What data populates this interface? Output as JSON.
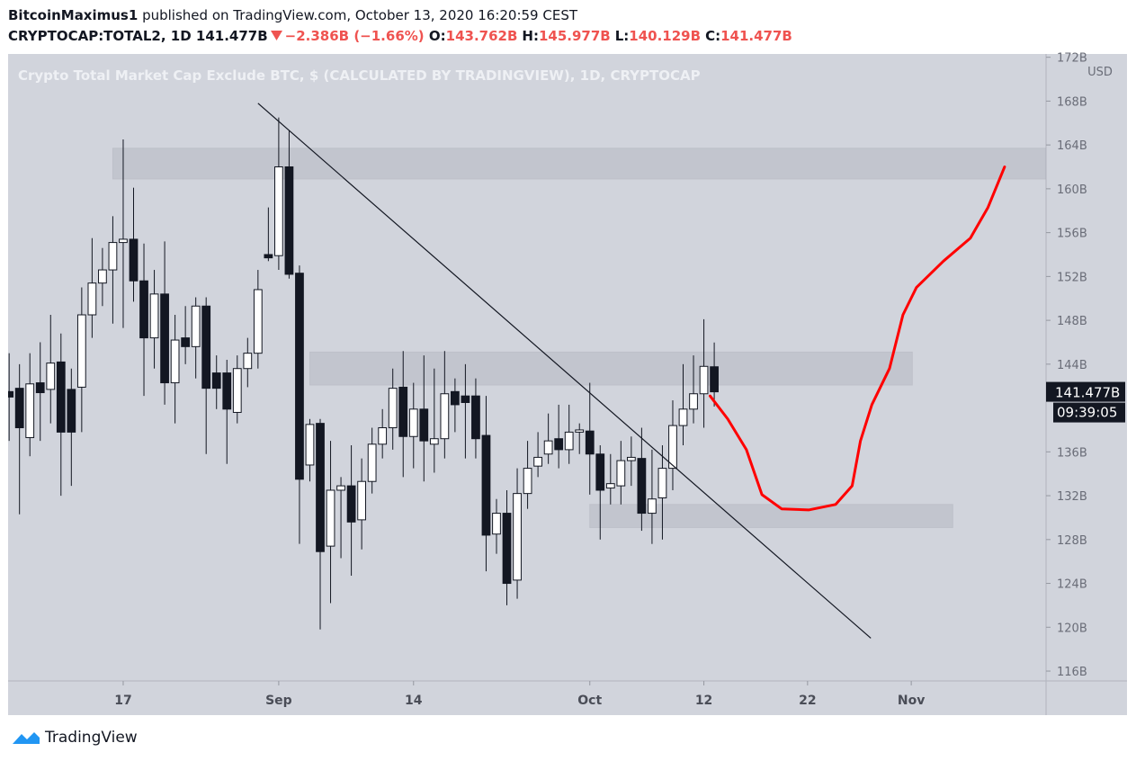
{
  "header": {
    "author": "BitcoinMaximus1",
    "published": "published on TradingView.com, October 13, 2020 16:20:59 CEST",
    "symbol": "CRYPTOCAP:TOTAL2, 1D",
    "last": "141.477B",
    "change": "−2.386B (−1.66%)",
    "ohlc": [
      {
        "label": "O:",
        "value": "143.762B"
      },
      {
        "label": "H:",
        "value": "145.977B"
      },
      {
        "label": "L:",
        "value": "140.129B"
      },
      {
        "label": "C:",
        "value": "141.477B"
      }
    ]
  },
  "chart_data": {
    "type": "candlestick",
    "title": "Crypto Total Market Cap Exclude BTC, $ (CALCULATED BY TRADINGVIEW), 1D, CRYPTOCAP",
    "x": [
      219,
      220,
      221,
      222,
      223,
      224,
      225,
      226,
      227,
      228,
      229,
      230,
      231,
      232,
      233,
      234,
      235,
      236,
      237,
      238,
      239,
      240,
      241,
      242,
      243,
      244,
      245,
      246,
      247,
      248,
      249,
      250,
      251,
      252,
      253,
      254,
      255,
      256,
      257,
      258,
      259,
      260,
      261,
      262,
      263,
      264,
      265,
      266,
      267,
      268,
      269,
      270,
      271,
      272,
      273,
      274,
      275,
      276,
      277,
      278,
      279,
      280,
      281,
      282,
      283,
      284,
      285,
      286,
      287
    ],
    "open": [
      141.5,
      141.8,
      137.3,
      142.3,
      141.7,
      144.2,
      141.7,
      141.9,
      148.5,
      151.4,
      152.6,
      155.1,
      155.4,
      151.6,
      146.4,
      150.4,
      142.3,
      146.4,
      145.6,
      149.3,
      143.2,
      143.2,
      139.6,
      143.6,
      145,
      154,
      153.9,
      162,
      152.3,
      134.8,
      138.6,
      127.4,
      132.5,
      132.9,
      129.8,
      133.3,
      136.7,
      138.2,
      141.9,
      137.4,
      139.9,
      136.7,
      137.2,
      141.5,
      141.1,
      141.1,
      137.5,
      128.5,
      130.4,
      124.3,
      132.2,
      134.7,
      135.8,
      137.2,
      136.2,
      137.8,
      137.9,
      135.8,
      132.7,
      132.9,
      135.2,
      135.4,
      130.4,
      131.8,
      134.5,
      138.4,
      139.9,
      141.3,
      143.762
    ],
    "high": [
      145,
      144,
      145,
      146,
      148.5,
      146.8,
      143.6,
      151,
      155.5,
      154.6,
      157.5,
      164.5,
      160.1,
      155,
      152.6,
      155.2,
      148.5,
      149.3,
      150.1,
      150.1,
      144.8,
      144.4,
      144.8,
      146.4,
      152.6,
      158.3,
      166.5,
      165.3,
      153,
      139,
      139,
      137,
      133.7,
      136.6,
      135.4,
      138.2,
      139.9,
      143.6,
      145.2,
      142.3,
      144.8,
      143.6,
      145.2,
      142.7,
      144,
      142.7,
      141.1,
      131.7,
      132.5,
      134.5,
      137,
      137.8,
      139.5,
      140.3,
      140.3,
      138.6,
      142.3,
      136.6,
      135.8,
      137,
      137.4,
      138.2,
      136.2,
      136.6,
      140.7,
      144,
      144.8,
      148.1,
      145.977
    ],
    "low": [
      137,
      130.3,
      135.6,
      137,
      138.6,
      132,
      132.9,
      137.8,
      146.4,
      149.3,
      147.7,
      147.3,
      149.7,
      141.1,
      143.6,
      140.3,
      138.6,
      144,
      142.7,
      135.8,
      139.9,
      134.9,
      138.6,
      141.9,
      143.6,
      153.4,
      152.6,
      151.8,
      127.6,
      133.3,
      119.8,
      122.2,
      126.3,
      124.7,
      127.1,
      132.2,
      135.4,
      136.2,
      133.7,
      134.5,
      133.3,
      134.1,
      135.4,
      137.8,
      135.4,
      135.4,
      125.1,
      126.7,
      122,
      122.6,
      130.8,
      133.7,
      134.9,
      134.5,
      134.9,
      135.8,
      132.1,
      128,
      131.2,
      131.2,
      132.9,
      128.8,
      127.6,
      128,
      132.5,
      136.6,
      138.6,
      138.2,
      140.129
    ],
    "close": [
      141,
      138.2,
      142.2,
      141.4,
      144.1,
      137.8,
      137.8,
      148.5,
      151.4,
      152.6,
      155.1,
      155.4,
      151.6,
      146.4,
      150.4,
      142.3,
      146.2,
      145.6,
      149.3,
      141.8,
      141.8,
      139.9,
      143.6,
      145,
      150.8,
      153.7,
      162,
      152.2,
      133.5,
      138.5,
      126.9,
      132.5,
      132.9,
      129.6,
      133.3,
      136.7,
      138.2,
      141.8,
      137.4,
      139.9,
      137,
      137.2,
      141.3,
      140.3,
      140.5,
      137.2,
      128.4,
      130.4,
      124,
      132.2,
      134.5,
      135.5,
      137,
      136.2,
      137.8,
      138,
      135.8,
      132.5,
      133.1,
      135.2,
      135.5,
      130.4,
      131.7,
      134.5,
      138.4,
      139.9,
      141.3,
      143.8,
      141.477
    ],
    "up_color": "#ffffff",
    "down_color": "#131722",
    "xlim": [
      218.9,
      319
    ],
    "xticks": [
      {
        "value": 230,
        "label": "17"
      },
      {
        "value": 245,
        "label": "Sep"
      },
      {
        "value": 258,
        "label": "14"
      },
      {
        "value": 275,
        "label": "Oct"
      },
      {
        "value": 286,
        "label": "12"
      },
      {
        "value": 296,
        "label": "22"
      },
      {
        "value": 306,
        "label": "Nov"
      }
    ],
    "ylim": [
      115.1,
      172.3
    ],
    "yticks": [
      {
        "value": 116,
        "label": "116B"
      },
      {
        "value": 120,
        "label": "120B"
      },
      {
        "value": 124,
        "label": "124B"
      },
      {
        "value": 128,
        "label": "128B"
      },
      {
        "value": 132,
        "label": "132B"
      },
      {
        "value": 136,
        "label": "136B"
      },
      {
        "value": 144,
        "label": "144B"
      },
      {
        "value": 148,
        "label": "148B"
      },
      {
        "value": 152,
        "label": "152B"
      },
      {
        "value": 156,
        "label": "156B"
      },
      {
        "value": 160,
        "label": "160B"
      },
      {
        "value": 164,
        "label": "164B"
      },
      {
        "value": 168,
        "label": "168B"
      },
      {
        "value": 172,
        "label": "172B"
      }
    ],
    "y_unit": "USD",
    "last_price_label": "141.477B",
    "countdown": "09:39:05",
    "zones": [
      {
        "x": [
          229,
          319
        ],
        "y": [
          160.9,
          163.7
        ]
      },
      {
        "x": [
          248,
          306.1
        ],
        "y": [
          142.1,
          145.1
        ]
      },
      {
        "x": [
          275,
          310
        ],
        "y": [
          129.1,
          131.2
        ]
      }
    ],
    "trendline": {
      "x": [
        243,
        302.1
      ],
      "y": [
        167.8,
        119.0
      ]
    },
    "forecast": {
      "color": "#ff0000",
      "x": [
        286.6,
        288.3,
        290.1,
        291.6,
        293.5,
        296.1,
        298.7,
        300.3,
        301.1,
        302.2,
        303.9,
        305.2,
        306.5,
        309.1,
        311.7,
        313.4,
        315
      ],
      "y": [
        141.1,
        139.0,
        136.2,
        132.1,
        130.8,
        130.7,
        131.2,
        132.9,
        137.0,
        140.3,
        143.6,
        148.5,
        151,
        153.4,
        155.5,
        158.3,
        162
      ]
    }
  },
  "footer": {
    "brand": "TradingView"
  }
}
